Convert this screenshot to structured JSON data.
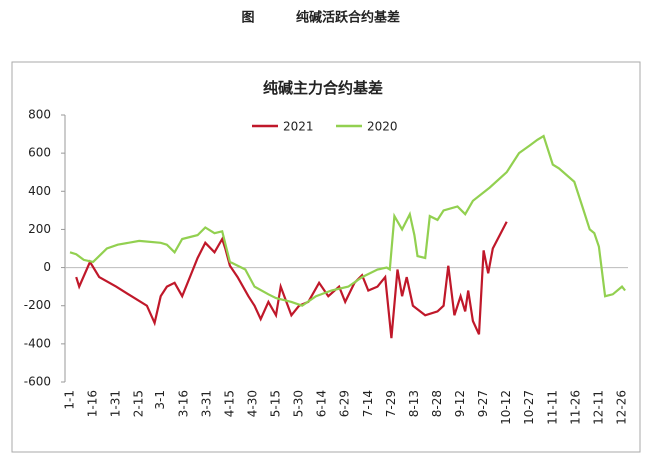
{
  "caption": {
    "label": "图",
    "title": "纯碱活跃合约基差"
  },
  "chart_data": {
    "type": "line",
    "title": "纯碱主力合约基差",
    "ylim": [
      -600,
      800
    ],
    "yticks": [
      -600,
      -400,
      -200,
      0,
      200,
      400,
      600,
      800
    ],
    "xticks": [
      "1-1",
      "1-16",
      "1-31",
      "2-15",
      "3-1",
      "3-16",
      "3-31",
      "4-15",
      "4-30",
      "5-15",
      "5-30",
      "6-14",
      "6-29",
      "7-14",
      "7-29",
      "8-13",
      "8-28",
      "9-12",
      "9-27",
      "10-12",
      "10-27",
      "11-11",
      "11-26",
      "12-11",
      "12-26"
    ],
    "legend": "top",
    "series": [
      {
        "name": "2021",
        "color": "#c0182a",
        "x": [
          "1-5",
          "1-7",
          "1-14",
          "1-20",
          "1-31",
          "2-10",
          "2-20",
          "2-25",
          "3-1",
          "3-5",
          "3-10",
          "3-15",
          "3-20",
          "3-25",
          "3-30",
          "4-5",
          "4-10",
          "4-12",
          "4-15",
          "4-20",
          "4-27",
          "5-1",
          "5-5",
          "5-10",
          "5-15",
          "5-18",
          "5-25",
          "5-30",
          "6-5",
          "6-12",
          "6-18",
          "6-25",
          "6-29",
          "7-5",
          "7-10",
          "7-14",
          "7-20",
          "7-25",
          "7-29",
          "8-2",
          "8-5",
          "8-8",
          "8-12",
          "8-20",
          "8-28",
          "9-1",
          "9-4",
          "9-8",
          "9-12",
          "9-15",
          "9-17",
          "9-20",
          "9-24",
          "9-27",
          "9-30",
          "10-3",
          "10-12"
        ],
        "values": [
          -50,
          -100,
          30,
          -50,
          -100,
          -150,
          -200,
          -290,
          -150,
          -100,
          -80,
          -150,
          -50,
          50,
          130,
          80,
          150,
          100,
          10,
          -50,
          -150,
          -200,
          -270,
          -180,
          -250,
          -100,
          -250,
          -200,
          -180,
          -80,
          -150,
          -100,
          -180,
          -80,
          -40,
          -120,
          -100,
          -50,
          -370,
          -10,
          -150,
          -50,
          -200,
          -250,
          -230,
          -200,
          10,
          -250,
          -150,
          -230,
          -120,
          -280,
          -350,
          90,
          -30,
          100,
          240
        ]
      },
      {
        "name": "2020",
        "color": "#92d050",
        "x": [
          "1-1",
          "1-5",
          "1-10",
          "1-16",
          "1-25",
          "2-1",
          "2-15",
          "3-1",
          "3-5",
          "3-10",
          "3-15",
          "3-25",
          "3-30",
          "4-5",
          "4-10",
          "4-15",
          "4-25",
          "5-1",
          "5-10",
          "5-15",
          "5-25",
          "6-1",
          "6-10",
          "6-20",
          "7-1",
          "7-10",
          "7-20",
          "7-26",
          "7-28",
          "7-31",
          "8-5",
          "8-10",
          "8-13",
          "8-15",
          "8-20",
          "8-23",
          "8-28",
          "9-1",
          "9-10",
          "9-15",
          "9-20",
          "10-1",
          "10-12",
          "10-20",
          "10-27",
          "11-1",
          "11-5",
          "11-11",
          "11-15",
          "11-25",
          "12-1",
          "12-5",
          "12-8",
          "12-11",
          "12-15",
          "12-20",
          "12-26",
          "12-28"
        ],
        "values": [
          80,
          70,
          40,
          30,
          100,
          120,
          140,
          130,
          120,
          80,
          150,
          170,
          210,
          180,
          190,
          30,
          -10,
          -100,
          -140,
          -160,
          -180,
          -200,
          -150,
          -120,
          -100,
          -50,
          -10,
          0,
          -10,
          270,
          200,
          280,
          170,
          60,
          50,
          270,
          250,
          300,
          320,
          280,
          350,
          420,
          500,
          600,
          640,
          670,
          690,
          540,
          520,
          450,
          300,
          200,
          180,
          110,
          -150,
          -140,
          -100,
          -120
        ]
      }
    ]
  }
}
